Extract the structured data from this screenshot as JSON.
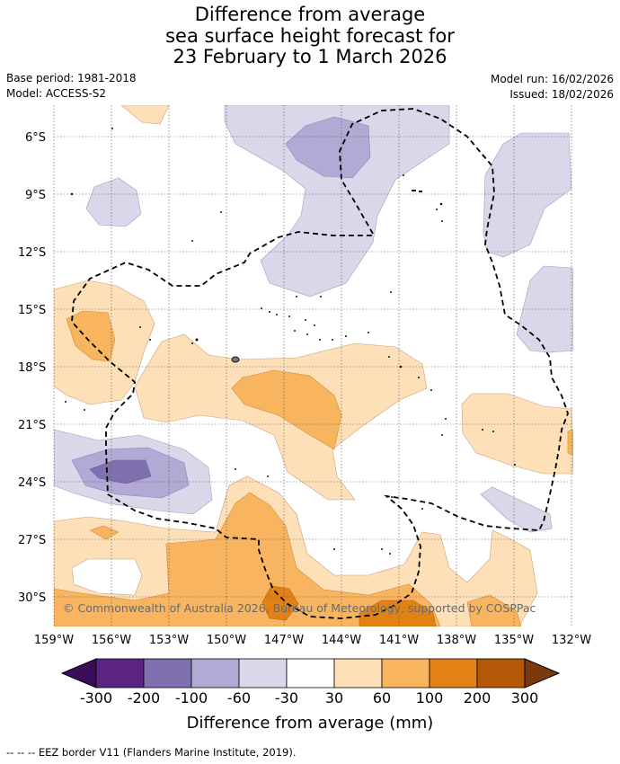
{
  "title": {
    "line1": "Difference from average",
    "line2": "sea surface height forecast for",
    "line3": "23 February to 1 March 2026"
  },
  "meta": {
    "base_period": "Base period: 1981-2018",
    "model": "Model: ACCESS-S2",
    "model_run": "Model run: 16/02/2026",
    "issued": "Issued: 18/02/2026"
  },
  "map": {
    "lon_range": [
      -159.5,
      -131.5
    ],
    "lat_range": [
      -31.5,
      -4.5
    ],
    "lat_ticks": [
      {
        "value": -6,
        "label": "6°S"
      },
      {
        "value": -9,
        "label": "9°S"
      },
      {
        "value": -12,
        "label": "12°S"
      },
      {
        "value": -15,
        "label": "15°S"
      },
      {
        "value": -18,
        "label": "18°S"
      },
      {
        "value": -21,
        "label": "21°S"
      },
      {
        "value": -24,
        "label": "24°S"
      },
      {
        "value": -27,
        "label": "27°S"
      },
      {
        "value": -30,
        "label": "30°S"
      }
    ],
    "lon_ticks": [
      {
        "value": -159,
        "label": "159°W"
      },
      {
        "value": -156,
        "label": "156°W"
      },
      {
        "value": -153,
        "label": "153°W"
      },
      {
        "value": -150,
        "label": "150°W"
      },
      {
        "value": -147,
        "label": "147°W"
      },
      {
        "value": -144,
        "label": "144°W"
      },
      {
        "value": -141,
        "label": "141°W"
      },
      {
        "value": -138,
        "label": "138°W"
      },
      {
        "value": -135,
        "label": "135°W"
      },
      {
        "value": -132,
        "label": "132°W"
      }
    ],
    "copyright": "© Commonwealth of Australia 2026, Bureau of Meteorology, supported by COSPPac"
  },
  "colorbar": {
    "title": "Difference from average (mm)",
    "labels": [
      "-300",
      "-200",
      "-100",
      "-60",
      "-30",
      "30",
      "60",
      "100",
      "200",
      "300"
    ],
    "colors": [
      "#5c2483",
      "#8070b0",
      "#b0aad4",
      "#d8d8ea",
      "#ffffff",
      "#fde0b8",
      "#f8b45e",
      "#e28214",
      "#b45808"
    ],
    "under_color": "#3b0c5a",
    "over_color": "#7b3a0a"
  },
  "palette": {
    "purple_light": "#d8d8ea",
    "purple_mid": "#b0aad4",
    "purple_dark": "#8070b0",
    "orange_light": "#fde0b8",
    "orange_mid": "#f8b45e",
    "orange_dark": "#e28214"
  },
  "footer": {
    "eez_note": "--  --  -- EEZ border V11 (Flanders Marine Institute, 2019)."
  }
}
